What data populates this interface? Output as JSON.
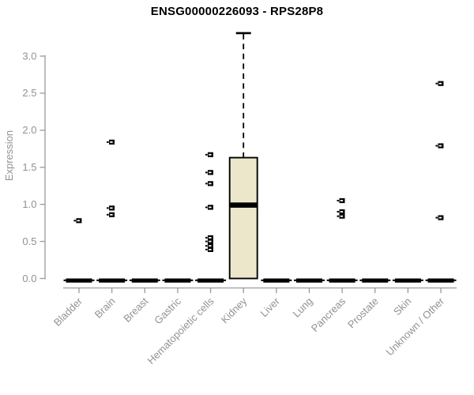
{
  "chart_data": {
    "type": "boxplot",
    "title": "ENSG00000226093 - RPS28P8",
    "ylabel": "Expression",
    "ylim": [
      0,
      3.4
    ],
    "yticks": [
      0.0,
      0.5,
      1.0,
      1.5,
      2.0,
      2.5,
      3.0
    ],
    "grid": false,
    "legend": "none",
    "categories": [
      "Bladder",
      "Brain",
      "Breast",
      "Gastric",
      "Hematopoietic cells",
      "Kidney",
      "Liver",
      "Lung",
      "Pancreas",
      "Prostate",
      "Skin",
      "Unknown / Other"
    ],
    "boxes": [
      {
        "category": "Bladder",
        "median": 0,
        "q1": 0,
        "q3": 0,
        "whisker_low": 0,
        "whisker_high": 0,
        "points": [
          0.78
        ]
      },
      {
        "category": "Brain",
        "median": 0,
        "q1": 0,
        "q3": 0,
        "whisker_low": 0,
        "whisker_high": 0,
        "points": [
          1.84,
          0.95,
          0.86
        ]
      },
      {
        "category": "Breast",
        "median": 0,
        "q1": 0,
        "q3": 0,
        "whisker_low": 0,
        "whisker_high": 0,
        "points": []
      },
      {
        "category": "Gastric",
        "median": 0,
        "q1": 0,
        "q3": 0,
        "whisker_low": 0,
        "whisker_high": 0,
        "points": []
      },
      {
        "category": "Hematopoietic cells",
        "median": 0,
        "q1": 0,
        "q3": 0,
        "whisker_low": 0,
        "whisker_high": 0,
        "points": [
          1.67,
          1.43,
          1.28,
          0.96,
          0.55,
          0.5,
          0.44,
          0.39
        ]
      },
      {
        "category": "Kidney",
        "median": 0.99,
        "q1": 0,
        "q3": 1.63,
        "whisker_low": 0,
        "whisker_high": 3.31,
        "points": []
      },
      {
        "category": "Liver",
        "median": 0,
        "q1": 0,
        "q3": 0,
        "whisker_low": 0,
        "whisker_high": 0,
        "points": []
      },
      {
        "category": "Lung",
        "median": 0,
        "q1": 0,
        "q3": 0,
        "whisker_low": 0,
        "whisker_high": 0,
        "points": []
      },
      {
        "category": "Pancreas",
        "median": 0,
        "q1": 0,
        "q3": 0,
        "whisker_low": 0,
        "whisker_high": 0,
        "points": [
          1.05,
          0.9,
          0.84
        ]
      },
      {
        "category": "Prostate",
        "median": 0,
        "q1": 0,
        "q3": 0,
        "whisker_low": 0,
        "whisker_high": 0,
        "points": []
      },
      {
        "category": "Skin",
        "median": 0,
        "q1": 0,
        "q3": 0,
        "whisker_low": 0,
        "whisker_high": 0,
        "points": []
      },
      {
        "category": "Unknown / Other",
        "median": 0,
        "q1": 0,
        "q3": 0,
        "whisker_low": 0,
        "whisker_high": 0,
        "points": [
          2.63,
          1.79,
          0.82
        ]
      }
    ],
    "box_fill": "#ece7cb",
    "box_stroke": "#000000",
    "median_color": "#000000",
    "point_color": "#000000",
    "axis_color": "#9a9a9a",
    "label_color": "#929292",
    "title_color": "#000000"
  }
}
